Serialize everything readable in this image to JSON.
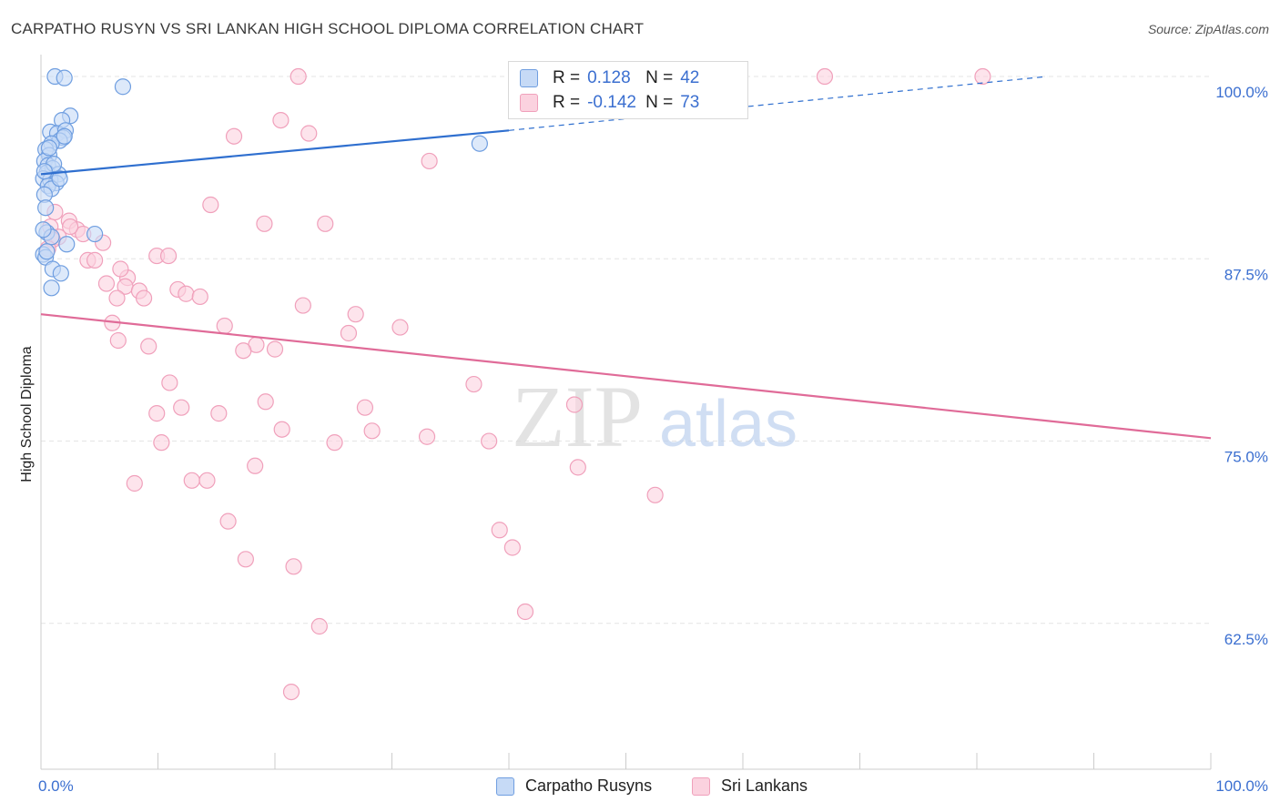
{
  "chart_data": {
    "type": "scatter",
    "title": "CARPATHO RUSYN VS SRI LANKAN HIGH SCHOOL DIPLOMA CORRELATION CHART",
    "source": "Source: ZipAtlas.com",
    "ylabel": "High School Diploma",
    "xlabel": "",
    "x_tick_labels": {
      "left": "0.0%",
      "right": "100.0%"
    },
    "y_tick_labels": [
      "100.0%",
      "87.5%",
      "75.0%",
      "62.5%"
    ],
    "y_ticks": [
      100.0,
      87.5,
      75.0,
      62.5
    ],
    "xlim": [
      0,
      100
    ],
    "ylim": [
      52.5,
      101.5
    ],
    "grid": true,
    "watermark": {
      "zip": "ZIP",
      "atlas": "atlas"
    },
    "legend": [
      {
        "r_label": "R =",
        "r_value": "0.128",
        "n_label": "N =",
        "n_value": "42",
        "color": "#6f9ee0"
      },
      {
        "r_label": "R =",
        "r_value": "-0.142",
        "n_label": "N =",
        "n_value": "73",
        "color": "#f0a0bb"
      }
    ],
    "series": [
      {
        "name": "Carpatho Rusyns",
        "color": "#6f9ee0",
        "line_color": "#2f6fcf",
        "trend": {
          "x": [
            0,
            40
          ],
          "y": [
            93.3,
            96.3
          ],
          "dashed_x": [
            40,
            86
          ],
          "dashed_y": [
            96.3,
            100.0
          ]
        },
        "points": [
          [
            1.2,
            100.0
          ],
          [
            2.0,
            99.9
          ],
          [
            7.0,
            99.3
          ],
          [
            2.5,
            97.3
          ],
          [
            1.8,
            97.0
          ],
          [
            0.8,
            96.2
          ],
          [
            1.4,
            96.1
          ],
          [
            2.1,
            96.3
          ],
          [
            1.9,
            95.8
          ],
          [
            1.6,
            95.6
          ],
          [
            0.9,
            95.4
          ],
          [
            0.4,
            95.0
          ],
          [
            0.7,
            94.6
          ],
          [
            0.3,
            94.2
          ],
          [
            0.6,
            93.9
          ],
          [
            1.0,
            93.7
          ],
          [
            0.5,
            93.4
          ],
          [
            1.5,
            93.3
          ],
          [
            0.2,
            93.0
          ],
          [
            0.8,
            92.9
          ],
          [
            1.3,
            92.7
          ],
          [
            0.6,
            92.5
          ],
          [
            0.9,
            92.3
          ],
          [
            0.3,
            91.9
          ],
          [
            0.4,
            91.0
          ],
          [
            0.5,
            89.3
          ],
          [
            0.9,
            89.0
          ],
          [
            4.6,
            89.2
          ],
          [
            2.2,
            88.5
          ],
          [
            0.2,
            87.8
          ],
          [
            0.4,
            87.6
          ],
          [
            1.0,
            86.8
          ],
          [
            1.7,
            86.5
          ],
          [
            0.9,
            85.5
          ],
          [
            37.5,
            95.4
          ],
          [
            0.2,
            89.5
          ],
          [
            0.7,
            95.1
          ],
          [
            1.1,
            94.0
          ],
          [
            0.3,
            93.5
          ],
          [
            2.0,
            95.9
          ],
          [
            1.6,
            93.0
          ],
          [
            0.5,
            88.0
          ]
        ]
      },
      {
        "name": "Sri Lankans",
        "color": "#f0a0bb",
        "line_color": "#e06b98",
        "trend": {
          "x": [
            0,
            100
          ],
          "y": [
            83.7,
            75.2
          ]
        },
        "points": [
          [
            22.0,
            100.0
          ],
          [
            67.0,
            100.0
          ],
          [
            80.5,
            100.0
          ],
          [
            20.5,
            97.0
          ],
          [
            16.5,
            95.9
          ],
          [
            22.9,
            96.1
          ],
          [
            33.2,
            94.2
          ],
          [
            14.5,
            91.2
          ],
          [
            1.2,
            90.7
          ],
          [
            2.4,
            90.1
          ],
          [
            0.8,
            89.7
          ],
          [
            3.1,
            89.5
          ],
          [
            3.6,
            89.2
          ],
          [
            1.5,
            89.0
          ],
          [
            19.1,
            89.9
          ],
          [
            24.3,
            89.9
          ],
          [
            5.3,
            88.6
          ],
          [
            1.0,
            88.8
          ],
          [
            9.9,
            87.7
          ],
          [
            10.9,
            87.7
          ],
          [
            4.0,
            87.4
          ],
          [
            4.6,
            87.4
          ],
          [
            7.4,
            86.2
          ],
          [
            5.6,
            85.8
          ],
          [
            7.2,
            85.6
          ],
          [
            8.4,
            85.3
          ],
          [
            11.7,
            85.4
          ],
          [
            12.4,
            85.1
          ],
          [
            13.6,
            84.9
          ],
          [
            8.8,
            84.8
          ],
          [
            6.5,
            84.8
          ],
          [
            22.4,
            84.3
          ],
          [
            26.9,
            83.7
          ],
          [
            6.1,
            83.1
          ],
          [
            15.7,
            82.9
          ],
          [
            30.7,
            82.8
          ],
          [
            26.3,
            82.4
          ],
          [
            6.6,
            81.9
          ],
          [
            9.2,
            81.5
          ],
          [
            18.4,
            81.6
          ],
          [
            17.3,
            81.2
          ],
          [
            20.0,
            81.3
          ],
          [
            11.0,
            79.0
          ],
          [
            37.0,
            78.9
          ],
          [
            19.2,
            77.7
          ],
          [
            27.7,
            77.3
          ],
          [
            45.6,
            77.5
          ],
          [
            9.9,
            76.9
          ],
          [
            12.0,
            77.3
          ],
          [
            15.2,
            76.9
          ],
          [
            20.6,
            75.8
          ],
          [
            28.3,
            75.7
          ],
          [
            33.0,
            75.3
          ],
          [
            10.3,
            74.9
          ],
          [
            25.1,
            74.9
          ],
          [
            38.3,
            75.0
          ],
          [
            45.9,
            73.2
          ],
          [
            18.3,
            73.3
          ],
          [
            12.9,
            72.3
          ],
          [
            14.2,
            72.3
          ],
          [
            8.0,
            72.1
          ],
          [
            52.5,
            71.3
          ],
          [
            16.0,
            69.5
          ],
          [
            39.2,
            68.9
          ],
          [
            40.3,
            67.7
          ],
          [
            17.5,
            66.9
          ],
          [
            21.6,
            66.4
          ],
          [
            41.4,
            63.3
          ],
          [
            23.8,
            62.3
          ],
          [
            21.4,
            57.8
          ],
          [
            2.5,
            89.7
          ],
          [
            0.6,
            88.2
          ],
          [
            6.8,
            86.8
          ]
        ]
      }
    ],
    "bottom_legend": [
      "Carpatho Rusyns",
      "Sri Lankans"
    ]
  }
}
